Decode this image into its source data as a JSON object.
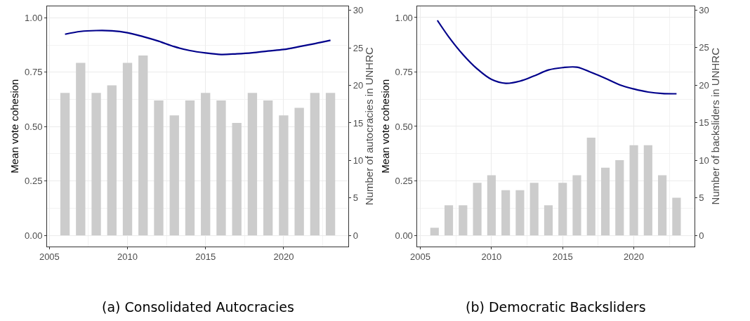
{
  "chart_data": [
    {
      "type": "bar",
      "title": "(a) Consolidated Autocracies",
      "ylabel": "Mean vote cohesion",
      "y2label": "Number of autocracies in UNHRC",
      "x": [
        2006,
        2007,
        2008,
        2009,
        2010,
        2011,
        2012,
        2013,
        2014,
        2015,
        2016,
        2017,
        2018,
        2019,
        2020,
        2021,
        2022,
        2023
      ],
      "series": [
        {
          "axis": "y2",
          "color": "#cccccc",
          "values": [
            19,
            23,
            19,
            20,
            23,
            24,
            18,
            16,
            18,
            19,
            18,
            15,
            19,
            18,
            16,
            17,
            19,
            19
          ]
        },
        {
          "type": "line",
          "axis": "y",
          "color": "#00008b",
          "values": [
            0.925,
            0.938,
            0.942,
            0.941,
            0.932,
            0.914,
            0.893,
            0.868,
            0.85,
            0.839,
            0.832,
            0.835,
            0.84,
            0.848,
            0.855,
            0.868,
            0.882,
            0.897
          ]
        }
      ],
      "xlim": [
        2004.85,
        2024.15
      ],
      "xticks": [
        2005,
        2010,
        2015,
        2020
      ],
      "ylim": [
        -0.05,
        1.054
      ],
      "yticks": [
        {
          "value": 0,
          "label": "0.00"
        },
        {
          "value": 0.25,
          "label": "0.25"
        },
        {
          "value": 0.5,
          "label": "0.50"
        },
        {
          "value": 0.75,
          "label": "0.75"
        },
        {
          "value": 1,
          "label": "1.00"
        }
      ],
      "y2lim": [
        -1.45,
        30.566
      ],
      "y2ticks": [
        0,
        5,
        10,
        15,
        20,
        25,
        30
      ],
      "grid": true,
      "line_style": "solid",
      "marker": "none"
    },
    {
      "type": "bar",
      "title": "(b) Democratic Backsliders",
      "ylabel": "Mean vote cohesion",
      "y2label": "Number of backsliders in UNHRC",
      "x": [
        2006,
        2007,
        2008,
        2009,
        2010,
        2011,
        2012,
        2013,
        2014,
        2015,
        2016,
        2017,
        2018,
        2019,
        2020,
        2021,
        2022,
        2023
      ],
      "series": [
        {
          "axis": "y2",
          "color": "#cccccc",
          "values": [
            1,
            4,
            4,
            7,
            8,
            6,
            6,
            7,
            4,
            7,
            8,
            13,
            9,
            10,
            12,
            12,
            8,
            5
          ]
        },
        {
          "type": "line",
          "axis": "y",
          "color": "#00008b",
          "x": [
            2006.2,
            2007,
            2008,
            2009,
            2010,
            2011,
            2012,
            2013,
            2014,
            2015,
            2016,
            2017,
            2018,
            2019,
            2020,
            2021,
            2022,
            2023
          ],
          "values": [
            0.987,
            0.911,
            0.83,
            0.764,
            0.716,
            0.698,
            0.708,
            0.732,
            0.759,
            0.77,
            0.772,
            0.748,
            0.721,
            0.691,
            0.672,
            0.658,
            0.651,
            0.65
          ]
        }
      ],
      "xlim": [
        2004.8,
        2024.25
      ],
      "xticks": [
        2005,
        2010,
        2015,
        2020
      ],
      "ylim": [
        -0.05,
        1.052
      ],
      "yticks": [
        {
          "value": 0,
          "label": "0.00"
        },
        {
          "value": 0.25,
          "label": "0.25"
        },
        {
          "value": 0.5,
          "label": "0.50"
        },
        {
          "value": 0.75,
          "label": "0.75"
        },
        {
          "value": 1,
          "label": "1.00"
        }
      ],
      "y2lim": [
        -1.45,
        30.508
      ],
      "y2ticks": [
        0,
        5,
        10,
        15,
        20,
        25,
        30
      ],
      "grid": true,
      "line_style": "solid",
      "marker": "none"
    }
  ]
}
